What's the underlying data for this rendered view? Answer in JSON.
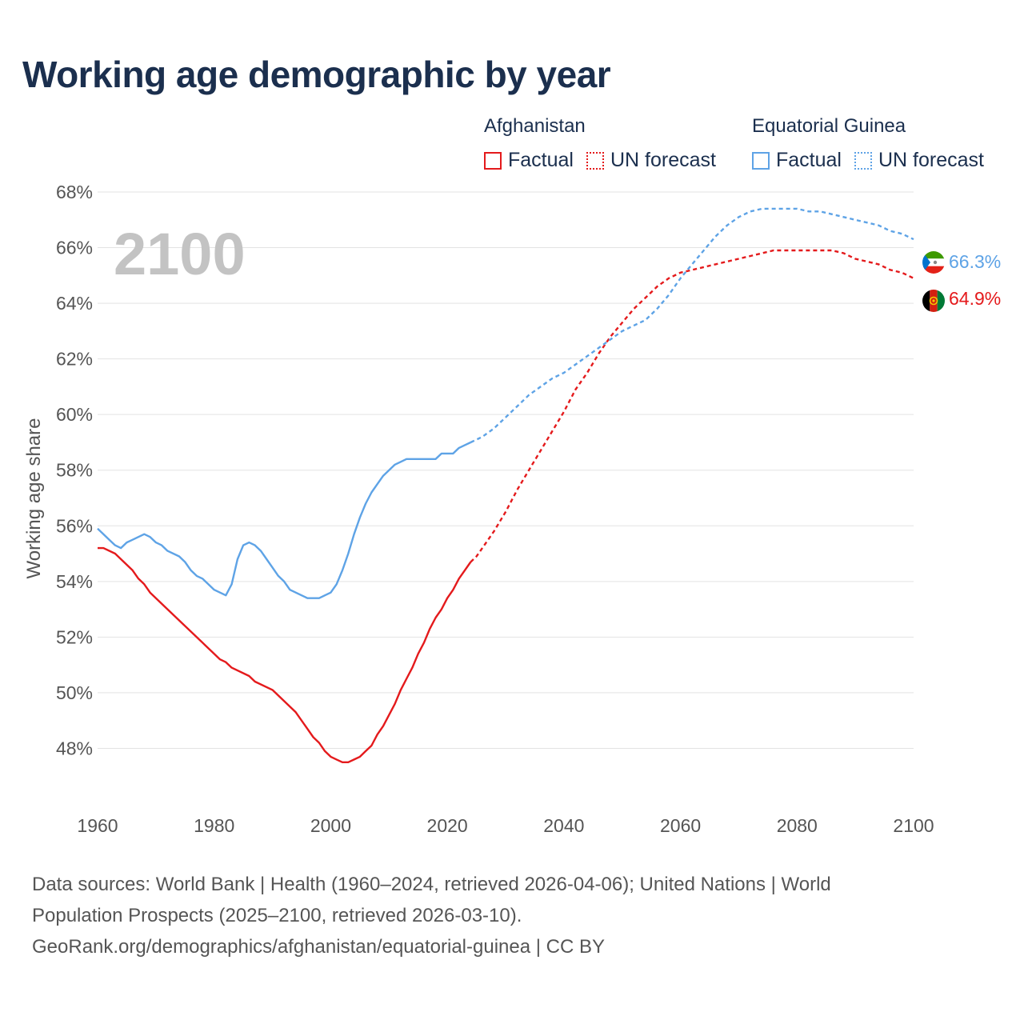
{
  "title": "Working age demographic by year",
  "legend": {
    "groups": [
      {
        "country": "Afghanistan",
        "factual_label": "Factual",
        "forecast_label": "UN forecast",
        "color": "#e41a1c"
      },
      {
        "country": "Equatorial Guinea",
        "factual_label": "Factual",
        "forecast_label": "UN forecast",
        "color": "#5ea3e6"
      }
    ]
  },
  "sources": {
    "line1": "Data sources: World Bank | Health (1960–2024, retrieved 2026-04-06); United Nations | World",
    "line2": "Population Prospects (2025–2100, retrieved 2026-03-10).",
    "line3": "GeoRank.org/demographics/afghanistan/equatorial-guinea | CC BY"
  },
  "chart_data": {
    "type": "line",
    "title": "Working age demographic by year",
    "xlabel": "",
    "ylabel": "Working age share",
    "xlim": [
      1960,
      2100
    ],
    "ylim": [
      46.0,
      68.0
    ],
    "x_ticks": [
      1960,
      1980,
      2000,
      2020,
      2040,
      2060,
      2080,
      2100
    ],
    "y_ticks": [
      48,
      50,
      52,
      54,
      56,
      58,
      60,
      62,
      64,
      66,
      68
    ],
    "y_tick_suffix": "%",
    "grid": true,
    "year_watermark": "2100",
    "forecast_start": 2024,
    "series": [
      {
        "name": "Afghanistan",
        "color": "#e41a1c",
        "end_label": "64.9%",
        "flag": "afghanistan-flag",
        "x": [
          1960,
          1961,
          1963,
          1966,
          1967,
          1968,
          1969,
          1972,
          1975,
          1978,
          1980,
          1981,
          1982,
          1983,
          1986,
          1987,
          1990,
          1994,
          1996,
          1997,
          1998,
          1999,
          2000,
          2001,
          2002,
          2003,
          2004,
          2005,
          2006,
          2007,
          2008,
          2009,
          2010,
          2011,
          2012,
          2013,
          2014,
          2015,
          2016,
          2017,
          2018,
          2019,
          2020,
          2021,
          2022,
          2023,
          2024,
          2025,
          2026,
          2028,
          2030,
          2032,
          2034,
          2036,
          2038,
          2040,
          2042,
          2044,
          2046,
          2048,
          2050,
          2052,
          2054,
          2056,
          2058,
          2060,
          2062,
          2064,
          2066,
          2068,
          2070,
          2072,
          2074,
          2076,
          2078,
          2080,
          2082,
          2084,
          2086,
          2088,
          2090,
          2092,
          2094,
          2096,
          2098,
          2100
        ],
        "values": [
          55.2,
          55.2,
          55.0,
          54.4,
          54.1,
          53.9,
          53.6,
          53.0,
          52.4,
          51.8,
          51.4,
          51.2,
          51.1,
          50.9,
          50.6,
          50.4,
          50.1,
          49.3,
          48.7,
          48.4,
          48.2,
          47.9,
          47.7,
          47.6,
          47.5,
          47.5,
          47.6,
          47.7,
          47.9,
          48.1,
          48.5,
          48.8,
          49.2,
          49.6,
          50.1,
          50.5,
          50.9,
          51.4,
          51.8,
          52.3,
          52.7,
          53.0,
          53.4,
          53.7,
          54.1,
          54.4,
          54.7,
          54.9,
          55.2,
          55.8,
          56.5,
          57.3,
          58.0,
          58.7,
          59.4,
          60.1,
          60.9,
          61.5,
          62.2,
          62.8,
          63.3,
          63.8,
          64.2,
          64.6,
          64.9,
          65.1,
          65.2,
          65.3,
          65.4,
          65.5,
          65.6,
          65.7,
          65.8,
          65.9,
          65.9,
          65.9,
          65.9,
          65.9,
          65.9,
          65.8,
          65.6,
          65.5,
          65.4,
          65.2,
          65.1,
          64.9
        ]
      },
      {
        "name": "Equatorial Guinea",
        "color": "#5ea3e6",
        "end_label": "66.3%",
        "flag": "equatorial-guinea-flag",
        "x": [
          1960,
          1961,
          1962,
          1963,
          1964,
          1965,
          1966,
          1967,
          1968,
          1969,
          1970,
          1971,
          1972,
          1974,
          1975,
          1976,
          1977,
          1978,
          1979,
          1980,
          1981,
          1982,
          1983,
          1984,
          1985,
          1986,
          1987,
          1988,
          1989,
          1990,
          1991,
          1992,
          1993,
          1994,
          1995,
          1996,
          1997,
          1998,
          1999,
          2000,
          2001,
          2002,
          2003,
          2004,
          2005,
          2006,
          2007,
          2008,
          2009,
          2010,
          2011,
          2012,
          2013,
          2014,
          2016,
          2018,
          2019,
          2020,
          2021,
          2022,
          2023,
          2024,
          2026,
          2028,
          2030,
          2032,
          2034,
          2036,
          2038,
          2040,
          2042,
          2044,
          2046,
          2048,
          2050,
          2052,
          2054,
          2056,
          2058,
          2060,
          2062,
          2064,
          2066,
          2068,
          2070,
          2072,
          2074,
          2076,
          2078,
          2080,
          2082,
          2084,
          2086,
          2088,
          2090,
          2092,
          2094,
          2096,
          2098,
          2100
        ],
        "values": [
          55.9,
          55.7,
          55.5,
          55.3,
          55.2,
          55.4,
          55.5,
          55.6,
          55.7,
          55.6,
          55.4,
          55.3,
          55.1,
          54.9,
          54.7,
          54.4,
          54.2,
          54.1,
          53.9,
          53.7,
          53.6,
          53.5,
          53.9,
          54.8,
          55.3,
          55.4,
          55.3,
          55.1,
          54.8,
          54.5,
          54.2,
          54.0,
          53.7,
          53.6,
          53.5,
          53.4,
          53.4,
          53.4,
          53.5,
          53.6,
          53.9,
          54.4,
          55.0,
          55.7,
          56.3,
          56.8,
          57.2,
          57.5,
          57.8,
          58.0,
          58.2,
          58.3,
          58.4,
          58.4,
          58.4,
          58.4,
          58.6,
          58.6,
          58.6,
          58.8,
          58.9,
          59.0,
          59.2,
          59.5,
          59.9,
          60.3,
          60.7,
          61.0,
          61.3,
          61.5,
          61.8,
          62.1,
          62.4,
          62.7,
          63.0,
          63.2,
          63.4,
          63.8,
          64.3,
          64.9,
          65.4,
          65.9,
          66.4,
          66.8,
          67.1,
          67.3,
          67.4,
          67.4,
          67.4,
          67.4,
          67.3,
          67.3,
          67.2,
          67.1,
          67.0,
          66.9,
          66.8,
          66.6,
          66.5,
          66.3
        ]
      }
    ]
  }
}
